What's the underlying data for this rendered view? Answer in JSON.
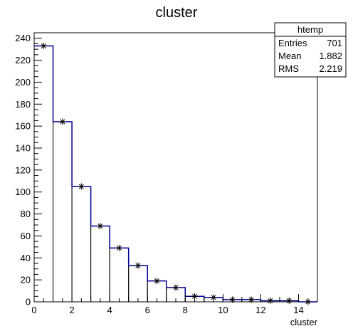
{
  "chart_data": {
    "type": "bar",
    "title": "cluster",
    "xlabel": "cluster",
    "ylabel": "",
    "xlim": [
      0,
      15
    ],
    "ylim": [
      0,
      245
    ],
    "bin_width": 1,
    "x_ticks": [
      0,
      2,
      4,
      6,
      8,
      10,
      12,
      14
    ],
    "y_ticks": [
      0,
      20,
      40,
      60,
      80,
      100,
      120,
      140,
      160,
      180,
      200,
      220,
      240
    ],
    "x_tick_labels": [
      "0",
      "2",
      "4",
      "6",
      "8",
      "10",
      "12",
      "14"
    ],
    "y_tick_labels": [
      "0",
      "20",
      "40",
      "60",
      "80",
      "100",
      "120",
      "140",
      "160",
      "180",
      "200",
      "220",
      "240"
    ],
    "bins": [
      0,
      1,
      2,
      3,
      4,
      5,
      6,
      7,
      8,
      9,
      10,
      11,
      12,
      13,
      14
    ],
    "series": [
      {
        "values": [
          233,
          164,
          105,
          69,
          49,
          33,
          19,
          13,
          5,
          4,
          2,
          2,
          1,
          1,
          0
        ],
        "line_color": "#000099",
        "outline_color": "#000000",
        "marker": "asterisk"
      }
    ],
    "grid": false,
    "legend": "none"
  },
  "stats_box": {
    "title": "htemp",
    "rows": [
      {
        "label": "Entries",
        "value": "701"
      },
      {
        "label": "Mean",
        "value": "1.882"
      },
      {
        "label": "RMS",
        "value": "2.219"
      }
    ]
  }
}
